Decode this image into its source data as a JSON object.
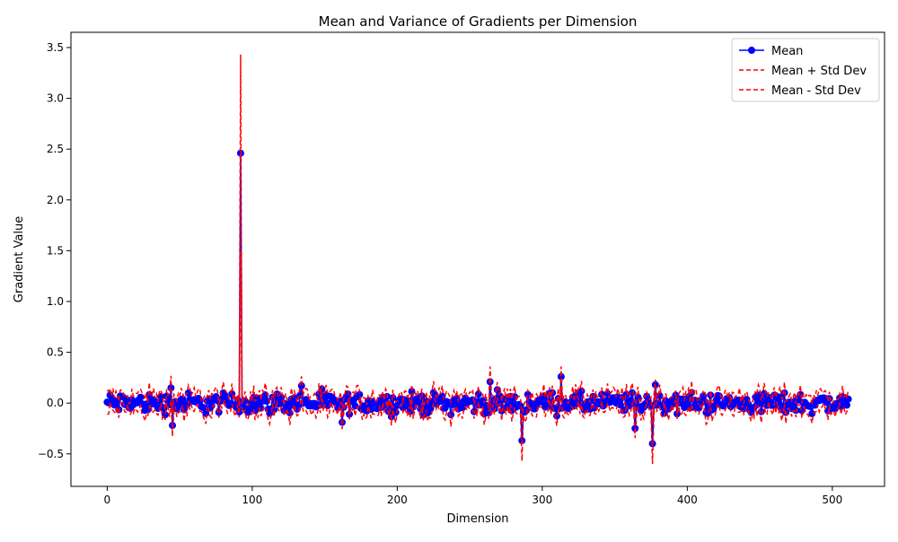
{
  "chart_data": {
    "type": "line",
    "title": "Mean and Variance of Gradients per Dimension",
    "xlabel": "Dimension",
    "ylabel": "Gradient Value",
    "xlim": [
      -25,
      536
    ],
    "ylim": [
      -0.82,
      3.65
    ],
    "xticks": [
      0,
      100,
      200,
      300,
      400,
      500
    ],
    "yticks": [
      -0.5,
      0.0,
      0.5,
      1.0,
      1.5,
      2.0,
      2.5,
      3.0,
      3.5
    ],
    "xtick_labels": [
      "0",
      "100",
      "200",
      "300",
      "400",
      "500"
    ],
    "ytick_labels": [
      "−0.5",
      "0.0",
      "0.5",
      "1.0",
      "1.5",
      "2.0",
      "2.5",
      "3.0",
      "3.5"
    ],
    "grid": false,
    "legend_position": "top-right",
    "n_points": 512,
    "series": [
      {
        "name": "Mean",
        "style": "solid-with-markers",
        "color": "#0000ff"
      },
      {
        "name": "Mean + Std Dev",
        "style": "dashed",
        "color": "#ff0000"
      },
      {
        "name": "Mean - Std Dev",
        "style": "dashed",
        "color": "#ff0000"
      }
    ],
    "notable_points": [
      {
        "x": 44,
        "mean": 0.15
      },
      {
        "x": 45,
        "mean": -0.22
      },
      {
        "x": 92,
        "mean": 2.46,
        "std": 0.97
      },
      {
        "x": 134,
        "mean": 0.17
      },
      {
        "x": 162,
        "mean": -0.19
      },
      {
        "x": 264,
        "mean": 0.21,
        "std": 0.15
      },
      {
        "x": 286,
        "mean": -0.37,
        "std": 0.2
      },
      {
        "x": 313,
        "mean": 0.26,
        "std": 0.1
      },
      {
        "x": 364,
        "mean": -0.25
      },
      {
        "x": 376,
        "mean": -0.4,
        "std": 0.2
      },
      {
        "x": 378,
        "mean": 0.18
      }
    ],
    "typical_mean_range": [
      -0.15,
      0.15
    ],
    "typical_std": 0.08
  }
}
